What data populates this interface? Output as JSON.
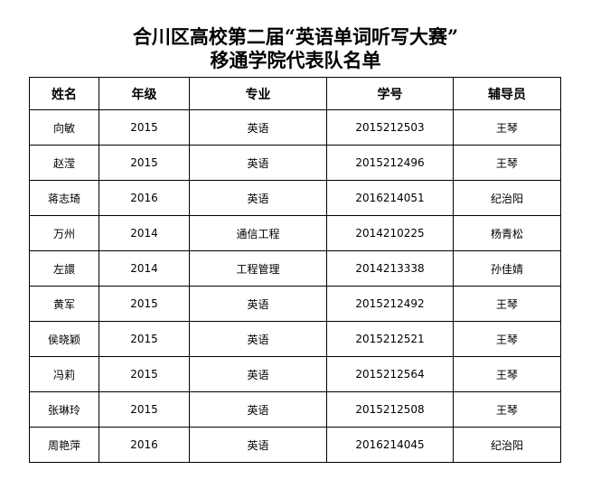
{
  "title_line1": "合川区高校第二届“英语单词听写大赛”",
  "title_line2": "移通学院代表队名单",
  "columns": [
    "姓名",
    "年级",
    "专业",
    "学号",
    "辅导员"
  ],
  "rows": [
    [
      "向敏",
      "2015",
      "英语",
      "2015212503",
      "王琴"
    ],
    [
      "赵滢",
      "2015",
      "英语",
      "2015212496",
      "王琴"
    ],
    [
      "蒋志琦",
      "2016",
      "英语",
      "2016214051",
      "纪治阳"
    ],
    [
      "万州",
      "2014",
      "通信工程",
      "2014210225",
      "杨青松"
    ],
    [
      "左譞",
      "2014",
      "工程管理",
      "2014213338",
      "孙佳婧"
    ],
    [
      "黄军",
      "2015",
      "英语",
      "2015212492",
      "王琴"
    ],
    [
      "侯晓颖",
      "2015",
      "英语",
      "2015212521",
      "王琴"
    ],
    [
      "冯莉",
      "2015",
      "英语",
      "2015212564",
      "王琴"
    ],
    [
      "张琳玲",
      "2015",
      "英语",
      "2015212508",
      "王琴"
    ],
    [
      "周艳萍",
      "2016",
      "英语",
      "2016214045",
      "纪治阳"
    ]
  ]
}
